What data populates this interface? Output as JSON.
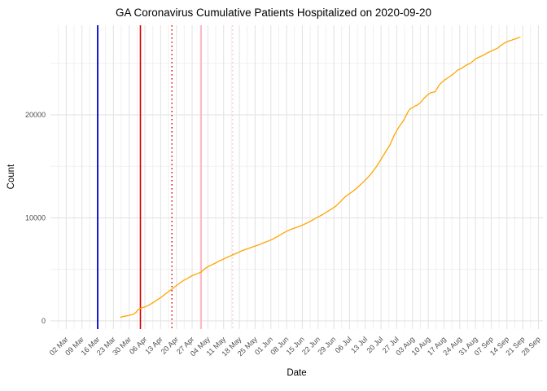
{
  "chart_data": {
    "type": "line",
    "title": "GA Coronavirus Cumulative Patients Hospitalized on 2020-09-20",
    "xlabel": "Date",
    "ylabel": "Count",
    "x_tick_labels": [
      "02 Mar",
      "09 Mar",
      "16 Mar",
      "23 Mar",
      "30 Mar",
      "06 Apr",
      "13 Apr",
      "20 Apr",
      "27 Apr",
      "04 May",
      "11 May",
      "18 May",
      "25 May",
      "01 Jun",
      "08 Jun",
      "15 Jun",
      "22 Jun",
      "29 Jun",
      "06 Jul",
      "13 Jul",
      "20 Jul",
      "27 Jul",
      "03 Aug",
      "10 Aug",
      "17 Aug",
      "24 Aug",
      "31 Aug",
      "07 Sep",
      "14 Sep",
      "21 Sep",
      "28 Sep"
    ],
    "x_tick_interval_days": 7,
    "x_domain_days": [
      -7,
      212
    ],
    "y_ticks": [
      0,
      10000,
      20000
    ],
    "y_minor_ticks": [
      5000,
      15000,
      25000
    ],
    "y_domain": [
      -800,
      28700
    ],
    "grid": true,
    "legend_position": "none",
    "series": [
      {
        "name": "cumulative-hospitalized",
        "color": "#FFA500",
        "points": [
          [
            24,
            330
          ],
          [
            25,
            400
          ],
          [
            26,
            450
          ],
          [
            27,
            490
          ],
          [
            28,
            540
          ],
          [
            29,
            590
          ],
          [
            30,
            660
          ],
          [
            31,
            820
          ],
          [
            32,
            1100
          ],
          [
            33,
            1210
          ],
          [
            34,
            1290
          ],
          [
            35,
            1360
          ],
          [
            36,
            1440
          ],
          [
            37,
            1560
          ],
          [
            38,
            1690
          ],
          [
            39,
            1820
          ],
          [
            40,
            1980
          ],
          [
            41,
            2110
          ],
          [
            42,
            2260
          ],
          [
            43,
            2420
          ],
          [
            44,
            2590
          ],
          [
            45,
            2760
          ],
          [
            46,
            2930
          ],
          [
            47,
            3070
          ],
          [
            48,
            3250
          ],
          [
            49,
            3420
          ],
          [
            50,
            3580
          ],
          [
            51,
            3730
          ],
          [
            52,
            3900
          ],
          [
            53,
            4020
          ],
          [
            54,
            4130
          ],
          [
            55,
            4260
          ],
          [
            56,
            4380
          ],
          [
            57,
            4470
          ],
          [
            58,
            4560
          ],
          [
            59,
            4640
          ],
          [
            60,
            4740
          ],
          [
            61,
            4940
          ],
          [
            62,
            5110
          ],
          [
            63,
            5260
          ],
          [
            64,
            5370
          ],
          [
            65,
            5460
          ],
          [
            66,
            5570
          ],
          [
            67,
            5680
          ],
          [
            68,
            5810
          ],
          [
            69,
            5900
          ],
          [
            70,
            6000
          ],
          [
            71,
            6110
          ],
          [
            72,
            6210
          ],
          [
            73,
            6300
          ],
          [
            74,
            6400
          ],
          [
            76,
            6590
          ],
          [
            78,
            6790
          ],
          [
            80,
            6950
          ],
          [
            82,
            7110
          ],
          [
            84,
            7260
          ],
          [
            86,
            7410
          ],
          [
            88,
            7590
          ],
          [
            90,
            7760
          ],
          [
            92,
            7950
          ],
          [
            94,
            8200
          ],
          [
            96,
            8450
          ],
          [
            98,
            8700
          ],
          [
            100,
            8890
          ],
          [
            102,
            9050
          ],
          [
            104,
            9200
          ],
          [
            106,
            9390
          ],
          [
            108,
            9600
          ],
          [
            110,
            9840
          ],
          [
            112,
            10090
          ],
          [
            114,
            10310
          ],
          [
            116,
            10590
          ],
          [
            118,
            10860
          ],
          [
            120,
            11150
          ],
          [
            122,
            11590
          ],
          [
            124,
            12040
          ],
          [
            126,
            12360
          ],
          [
            128,
            12660
          ],
          [
            130,
            13050
          ],
          [
            132,
            13450
          ],
          [
            134,
            13890
          ],
          [
            136,
            14390
          ],
          [
            138,
            14990
          ],
          [
            140,
            15690
          ],
          [
            142,
            16390
          ],
          [
            144,
            17090
          ],
          [
            146,
            18090
          ],
          [
            148,
            18840
          ],
          [
            150,
            19440
          ],
          [
            152,
            20290
          ],
          [
            153,
            20590
          ],
          [
            154,
            20690
          ],
          [
            155,
            20840
          ],
          [
            156,
            20940
          ],
          [
            157,
            21090
          ],
          [
            158,
            21290
          ],
          [
            159,
            21590
          ],
          [
            160,
            21790
          ],
          [
            161,
            21990
          ],
          [
            162,
            22140
          ],
          [
            163,
            22190
          ],
          [
            164,
            22240
          ],
          [
            165,
            22590
          ],
          [
            166,
            22940
          ],
          [
            167,
            23140
          ],
          [
            168,
            23340
          ],
          [
            169,
            23490
          ],
          [
            170,
            23640
          ],
          [
            171,
            23790
          ],
          [
            172,
            23940
          ],
          [
            173,
            24140
          ],
          [
            174,
            24340
          ],
          [
            175,
            24440
          ],
          [
            176,
            24540
          ],
          [
            177,
            24690
          ],
          [
            178,
            24840
          ],
          [
            179,
            24940
          ],
          [
            180,
            25040
          ],
          [
            181,
            25240
          ],
          [
            182,
            25440
          ],
          [
            183,
            25540
          ],
          [
            184,
            25640
          ],
          [
            185,
            25740
          ],
          [
            186,
            25840
          ],
          [
            187,
            25990
          ],
          [
            188,
            26090
          ],
          [
            189,
            26190
          ],
          [
            190,
            26290
          ],
          [
            191,
            26390
          ],
          [
            192,
            26490
          ],
          [
            193,
            26690
          ],
          [
            194,
            26840
          ],
          [
            195,
            26990
          ],
          [
            196,
            27090
          ],
          [
            197,
            27190
          ],
          [
            198,
            27240
          ],
          [
            199,
            27340
          ],
          [
            200,
            27390
          ],
          [
            201,
            27490
          ],
          [
            202,
            27540
          ]
        ]
      }
    ],
    "vlines": [
      {
        "name": "vline-blue-solid",
        "day": 14,
        "color": "#0000CC",
        "dash": "solid",
        "width": 1.8
      },
      {
        "name": "vline-red-solid",
        "day": 33,
        "color": "#DD0000",
        "dash": "solid",
        "width": 1.6
      },
      {
        "name": "vline-red-dotted",
        "day": 47,
        "color": "#DD0000",
        "dash": "dotted",
        "width": 1.4
      },
      {
        "name": "vline-pink-solid",
        "day": 60,
        "color": "#FFB3BE",
        "dash": "solid",
        "width": 1.8
      },
      {
        "name": "vline-pink-dotted",
        "day": 74,
        "color": "#FFC4CE",
        "dash": "dotted",
        "width": 1.4
      }
    ],
    "colors": {
      "background": "#FFFFFF",
      "grid_major": "#E2E2E2",
      "grid_minor": "#F0F0F0",
      "tick_label": "#4D4D4D",
      "axis_title": "#000000"
    }
  }
}
